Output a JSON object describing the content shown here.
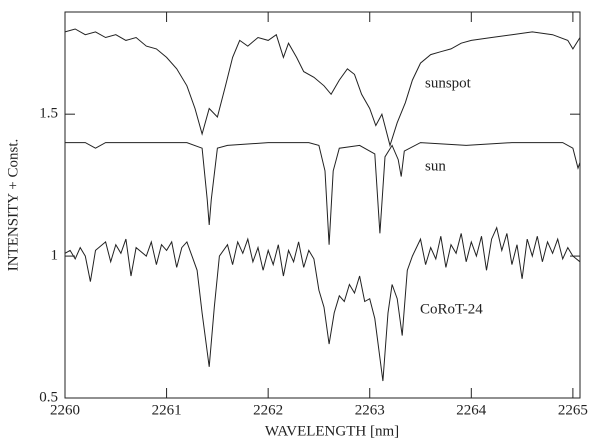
{
  "chart_data": {
    "type": "line",
    "x_label": "WAVELENGTH [nm]",
    "y_label": "INTENSITY + Const.",
    "xlim": [
      2260,
      2265.07
    ],
    "ylim": [
      0.5,
      1.86
    ],
    "xticks": [
      2260,
      2261,
      2262,
      2263,
      2264,
      2265
    ],
    "yticks": [
      0.5,
      1,
      1.5
    ],
    "series": [
      {
        "name": "sunspot",
        "color": "#222222",
        "x": [
          2260.0,
          2260.1,
          2260.2,
          2260.3,
          2260.4,
          2260.5,
          2260.6,
          2260.7,
          2260.8,
          2260.9,
          2261.0,
          2261.1,
          2261.2,
          2261.28,
          2261.35,
          2261.42,
          2261.5,
          2261.58,
          2261.65,
          2261.72,
          2261.8,
          2261.9,
          2262.0,
          2262.08,
          2262.15,
          2262.2,
          2262.28,
          2262.35,
          2262.45,
          2262.55,
          2262.62,
          2262.7,
          2262.78,
          2262.85,
          2262.92,
          2263.0,
          2263.06,
          2263.12,
          2263.2,
          2263.27,
          2263.35,
          2263.42,
          2263.5,
          2263.6,
          2263.7,
          2263.8,
          2263.9,
          2264.0,
          2264.2,
          2264.4,
          2264.6,
          2264.8,
          2264.95,
          2265.0,
          2265.07
        ],
        "values": [
          1.79,
          1.8,
          1.78,
          1.79,
          1.77,
          1.78,
          1.76,
          1.77,
          1.74,
          1.73,
          1.7,
          1.66,
          1.6,
          1.52,
          1.43,
          1.52,
          1.49,
          1.6,
          1.7,
          1.76,
          1.74,
          1.77,
          1.76,
          1.78,
          1.7,
          1.75,
          1.7,
          1.65,
          1.63,
          1.6,
          1.57,
          1.62,
          1.66,
          1.64,
          1.57,
          1.52,
          1.46,
          1.5,
          1.39,
          1.47,
          1.54,
          1.62,
          1.68,
          1.71,
          1.72,
          1.73,
          1.75,
          1.76,
          1.77,
          1.78,
          1.79,
          1.78,
          1.76,
          1.73,
          1.77
        ]
      },
      {
        "name": "sun",
        "color": "#222222",
        "x": [
          2260.0,
          2260.2,
          2260.3,
          2260.4,
          2260.8,
          2261.2,
          2261.35,
          2261.4,
          2261.42,
          2261.44,
          2261.5,
          2261.6,
          2262.0,
          2262.4,
          2262.5,
          2262.56,
          2262.6,
          2262.64,
          2262.7,
          2262.9,
          2263.05,
          2263.1,
          2263.15,
          2263.22,
          2263.28,
          2263.31,
          2263.34,
          2263.5,
          2263.95,
          2264.4,
          2264.9,
          2265.0,
          2265.05,
          2265.07
        ],
        "values": [
          1.4,
          1.4,
          1.38,
          1.4,
          1.4,
          1.4,
          1.38,
          1.2,
          1.11,
          1.2,
          1.38,
          1.39,
          1.4,
          1.4,
          1.39,
          1.3,
          1.04,
          1.3,
          1.38,
          1.39,
          1.36,
          1.08,
          1.35,
          1.39,
          1.34,
          1.28,
          1.37,
          1.4,
          1.39,
          1.4,
          1.4,
          1.38,
          1.31,
          1.33
        ]
      },
      {
        "name": "CoRoT-24",
        "color": "#222222",
        "x": [
          2260.0,
          2260.05,
          2260.1,
          2260.15,
          2260.2,
          2260.25,
          2260.3,
          2260.4,
          2260.45,
          2260.5,
          2260.55,
          2260.6,
          2260.65,
          2260.7,
          2260.8,
          2260.85,
          2260.9,
          2260.95,
          2261.0,
          2261.05,
          2261.1,
          2261.15,
          2261.2,
          2261.25,
          2261.3,
          2261.35,
          2261.42,
          2261.47,
          2261.52,
          2261.6,
          2261.65,
          2261.7,
          2261.75,
          2261.8,
          2261.85,
          2261.9,
          2261.95,
          2262.0,
          2262.05,
          2262.1,
          2262.15,
          2262.2,
          2262.25,
          2262.3,
          2262.35,
          2262.4,
          2262.45,
          2262.5,
          2262.55,
          2262.6,
          2262.65,
          2262.7,
          2262.75,
          2262.8,
          2262.85,
          2262.9,
          2262.95,
          2263.0,
          2263.05,
          2263.13,
          2263.18,
          2263.22,
          2263.27,
          2263.32,
          2263.37,
          2263.42,
          2263.5,
          2263.55,
          2263.6,
          2263.65,
          2263.7,
          2263.75,
          2263.8,
          2263.85,
          2263.9,
          2263.95,
          2264.0,
          2264.05,
          2264.1,
          2264.15,
          2264.2,
          2264.25,
          2264.3,
          2264.35,
          2264.4,
          2264.45,
          2264.5,
          2264.55,
          2264.6,
          2264.65,
          2264.7,
          2264.75,
          2264.8,
          2264.85,
          2264.9,
          2264.95,
          2265.0,
          2265.07
        ],
        "values": [
          1.01,
          1.02,
          0.99,
          1.03,
          1.0,
          0.91,
          1.02,
          1.05,
          0.98,
          1.04,
          1.01,
          1.06,
          0.93,
          1.03,
          1.0,
          1.05,
          0.97,
          1.04,
          1.02,
          1.05,
          0.96,
          1.03,
          1.05,
          1.0,
          0.95,
          0.8,
          0.61,
          0.82,
          1.0,
          1.04,
          0.97,
          1.05,
          1.01,
          1.06,
          0.98,
          1.03,
          0.95,
          1.02,
          0.97,
          1.04,
          0.93,
          1.02,
          0.98,
          1.05,
          0.96,
          1.02,
          0.99,
          0.88,
          0.82,
          0.69,
          0.8,
          0.86,
          0.84,
          0.9,
          0.87,
          0.93,
          0.84,
          0.85,
          0.78,
          0.56,
          0.8,
          0.9,
          0.85,
          0.72,
          0.95,
          1.0,
          1.06,
          0.97,
          1.03,
          0.99,
          1.07,
          0.96,
          1.04,
          1.01,
          1.08,
          0.98,
          1.05,
          1.0,
          1.07,
          0.95,
          1.06,
          1.1,
          1.02,
          1.08,
          0.97,
          1.04,
          0.92,
          1.06,
          1.0,
          1.07,
          0.98,
          1.05,
          1.01,
          1.06,
          0.99,
          1.03,
          1.0,
          0.98
        ]
      }
    ]
  }
}
